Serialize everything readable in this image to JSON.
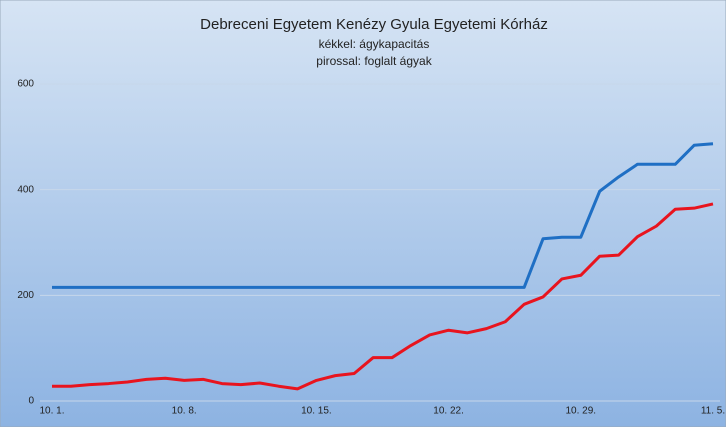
{
  "chart_data": {
    "type": "line",
    "title": "Debreceni Egyetem Kenézy Gyula Egyetemi Kórház",
    "subtitle": [
      "kékkel: ágykapacitás",
      "pirossal: foglalt ágyak"
    ],
    "categories": [
      "10. 1.",
      null,
      null,
      null,
      null,
      null,
      null,
      "10. 8.",
      null,
      null,
      null,
      null,
      null,
      null,
      "10. 15.",
      null,
      null,
      null,
      null,
      null,
      null,
      "10. 22.",
      null,
      null,
      null,
      null,
      null,
      null,
      "10. 29.",
      null,
      null,
      null,
      null,
      null,
      null,
      "11. 5."
    ],
    "series": [
      {
        "color": "#1f6fc4",
        "values": [
          215,
          215,
          215,
          215,
          215,
          215,
          215,
          215,
          215,
          215,
          215,
          215,
          215,
          215,
          215,
          215,
          215,
          215,
          215,
          215,
          215,
          215,
          215,
          215,
          215,
          215,
          307,
          310,
          310,
          397,
          424,
          448,
          448,
          448,
          484,
          487
        ]
      },
      {
        "color": "#e8141e",
        "values": [
          28,
          28,
          31,
          33,
          36,
          41,
          43,
          39,
          41,
          33,
          31,
          34,
          28,
          23,
          39,
          48,
          52,
          82,
          82,
          105,
          125,
          134,
          129,
          137,
          150,
          183,
          197,
          231,
          238,
          274,
          276,
          311,
          331,
          363,
          365,
          373
        ]
      }
    ],
    "ylim": [
      0,
      600
    ],
    "yticks": [
      0,
      200,
      400,
      600
    ],
    "grid": true
  }
}
